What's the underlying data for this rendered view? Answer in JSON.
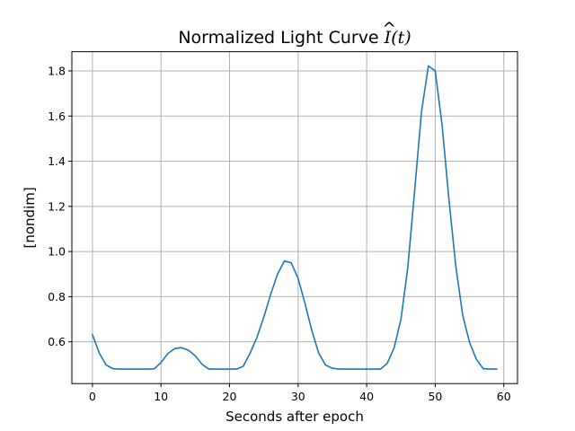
{
  "chart_data": {
    "type": "line",
    "title": {
      "prefix": "Normalized Light Curve ",
      "symbol": "I",
      "hat": "^",
      "args": "(t)"
    },
    "xlabel": "Seconds after epoch",
    "ylabel": "[nondim]",
    "xlim": [
      -3,
      62
    ],
    "ylim": [
      0.415,
      1.885
    ],
    "xticks": [
      0,
      10,
      20,
      30,
      40,
      50,
      60
    ],
    "xtick_labels": [
      "0",
      "10",
      "20",
      "30",
      "40",
      "50",
      "60"
    ],
    "yticks": [
      0.6,
      0.8,
      1.0,
      1.2,
      1.4,
      1.6,
      1.8
    ],
    "ytick_labels": [
      "0.6",
      "0.8",
      "1.0",
      "1.2",
      "1.4",
      "1.6",
      "1.8"
    ],
    "grid": true,
    "series": [
      {
        "color": "#1f77b4",
        "x": [
          0,
          1,
          2,
          3,
          4,
          5,
          6,
          7,
          8,
          9,
          10,
          11,
          12,
          13,
          14,
          15,
          16,
          17,
          18,
          19,
          20,
          21,
          22,
          23,
          24,
          25,
          26,
          27,
          28,
          29,
          30,
          31,
          32,
          33,
          34,
          35,
          36,
          37,
          38,
          39,
          40,
          41,
          42,
          43,
          44,
          45,
          46,
          47,
          48,
          49,
          50,
          51,
          52,
          53,
          54,
          55,
          56,
          57,
          58,
          59
        ],
        "y": [
          0.632,
          0.55,
          0.497,
          0.481,
          0.479,
          0.479,
          0.479,
          0.479,
          0.479,
          0.48,
          0.508,
          0.548,
          0.57,
          0.574,
          0.563,
          0.538,
          0.5,
          0.479,
          0.479,
          0.479,
          0.479,
          0.479,
          0.492,
          0.55,
          0.62,
          0.71,
          0.81,
          0.9,
          0.958,
          0.95,
          0.88,
          0.77,
          0.65,
          0.55,
          0.497,
          0.483,
          0.479,
          0.479,
          0.479,
          0.479,
          0.479,
          0.479,
          0.479,
          0.505,
          0.573,
          0.7,
          0.93,
          1.27,
          1.62,
          1.822,
          1.8,
          1.56,
          1.23,
          0.935,
          0.72,
          0.598,
          0.523,
          0.481,
          0.479,
          0.479
        ]
      }
    ]
  }
}
